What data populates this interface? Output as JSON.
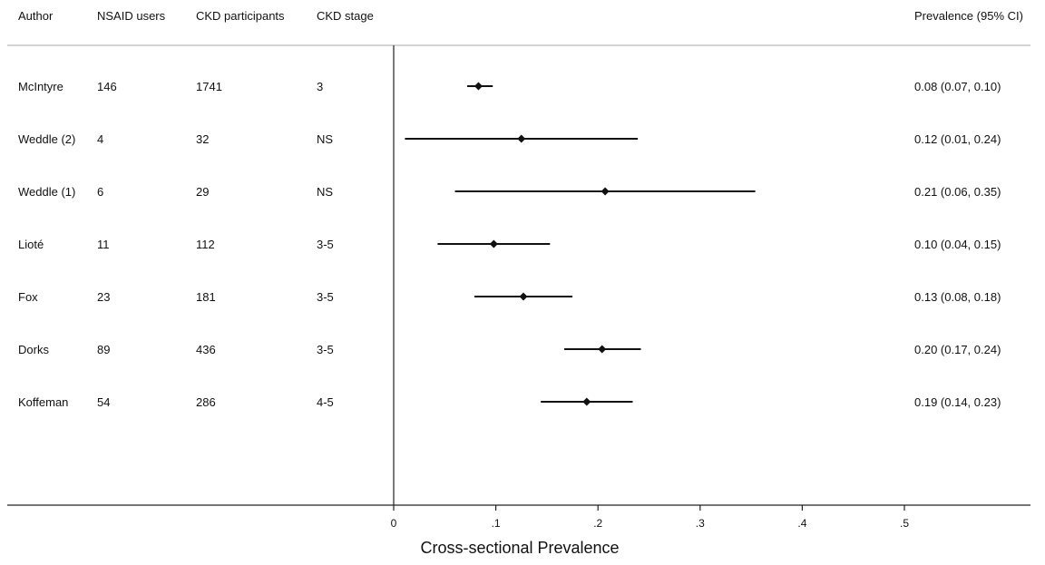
{
  "chart_data": {
    "type": "forest",
    "columns": {
      "author": "Author",
      "users": "NSAID users",
      "participants": "CKD participants",
      "stage": "CKD stage",
      "prevalence": "Prevalence (95% CI)"
    },
    "rows": [
      {
        "author": "McIntyre",
        "users": "146",
        "participants": "1741",
        "stage": "3",
        "estimate": 0.083,
        "lower": 0.072,
        "upper": 0.097,
        "label": "0.08 (0.07, 0.10)"
      },
      {
        "author": "Weddle (2)",
        "users": "4",
        "participants": "32",
        "stage": "NS",
        "estimate": 0.125,
        "lower": 0.011,
        "upper": 0.239,
        "label": "0.12 (0.01, 0.24)"
      },
      {
        "author": "Weddle (1)",
        "users": "6",
        "participants": "29",
        "stage": "NS",
        "estimate": 0.207,
        "lower": 0.06,
        "upper": 0.354,
        "label": "0.21 (0.06, 0.35)"
      },
      {
        "author": "Lioté",
        "users": "11",
        "participants": "112",
        "stage": "3-5",
        "estimate": 0.098,
        "lower": 0.043,
        "upper": 0.153,
        "label": "0.10 (0.04, 0.15)"
      },
      {
        "author": "Fox",
        "users": "23",
        "participants": "181",
        "stage": "3-5",
        "estimate": 0.127,
        "lower": 0.079,
        "upper": 0.175,
        "label": "0.13 (0.08, 0.18)"
      },
      {
        "author": "Dorks",
        "users": "89",
        "participants": "436",
        "stage": "3-5",
        "estimate": 0.204,
        "lower": 0.167,
        "upper": 0.242,
        "label": "0.20 (0.17, 0.24)"
      },
      {
        "author": "Koffeman",
        "users": "54",
        "participants": "286",
        "stage": "4-5",
        "estimate": 0.189,
        "lower": 0.144,
        "upper": 0.234,
        "label": "0.19 (0.14, 0.23)"
      }
    ],
    "xticks": [
      0,
      0.1,
      0.2,
      0.3,
      0.4,
      0.5
    ],
    "xtick_labels": [
      "0",
      ".1",
      ".2",
      ".3",
      ".4",
      ".5"
    ],
    "xlim": [
      0,
      0.5
    ],
    "xlabel": "Cross-sectional Prevalence",
    "reference_line": 0,
    "grid": false,
    "colors": {
      "marks": "#111111",
      "header_rule": "#bbbbbb"
    }
  }
}
